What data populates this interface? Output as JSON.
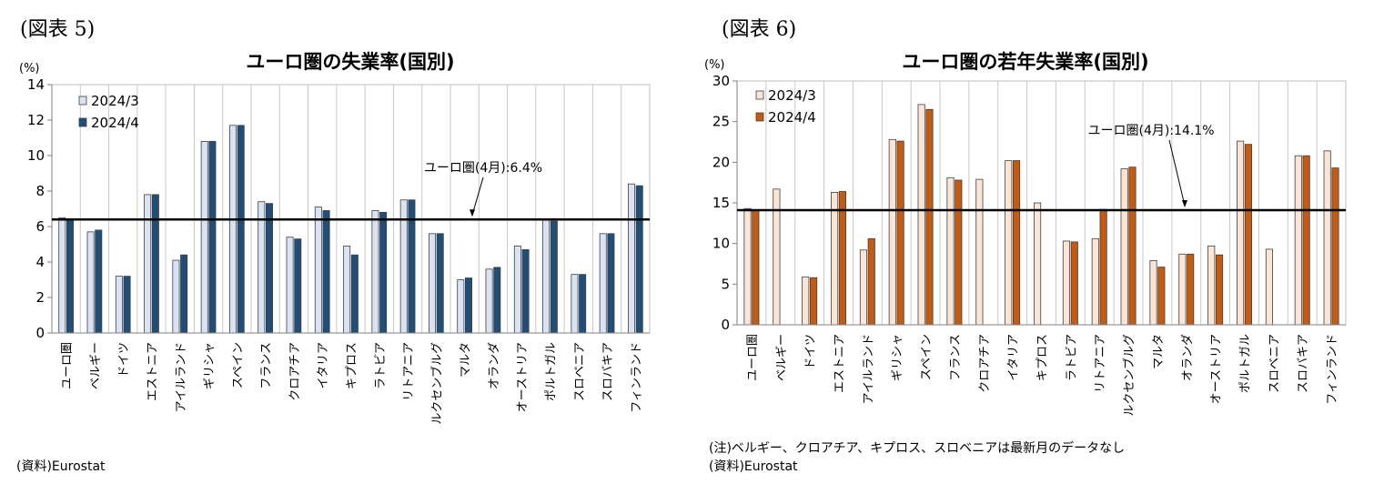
{
  "figures": [
    {
      "figure_label": "(図表 5)",
      "source": "(資料)Eurostat",
      "note": ""
    },
    {
      "figure_label": "(図表 6)",
      "source": "(資料)Eurostat",
      "note": "(注)ベルギー、クロアチア、キプロス、スロベニアは最新月のデータなし"
    }
  ],
  "chart_data": [
    {
      "type": "bar",
      "title": "ユーロ圏の失業率(国別)",
      "ylabel": "(%)",
      "xlabel": "",
      "ylim": [
        0,
        14
      ],
      "yticks": [
        0,
        2,
        4,
        6,
        8,
        10,
        12,
        14
      ],
      "grid": true,
      "legend_position": "top-left",
      "categories": [
        "ユーロ圏",
        "ベルギー",
        "ドイツ",
        "エストニア",
        "アイルランド",
        "ギリシャ",
        "スペイン",
        "フランス",
        "クロアチア",
        "イタリア",
        "キプロス",
        "ラトビア",
        "リトアニア",
        "ルクセンブルグ",
        "マルタ",
        "オランダ",
        "オーストリア",
        "ポルトガル",
        "スロベニア",
        "スロバキア",
        "フィンランド"
      ],
      "series": [
        {
          "name": "2024/3",
          "color": "#dae3f3",
          "values": [
            6.5,
            5.7,
            3.2,
            7.8,
            4.1,
            10.8,
            11.7,
            7.4,
            5.4,
            7.1,
            4.9,
            6.9,
            7.5,
            5.6,
            3.0,
            3.6,
            4.9,
            6.4,
            3.3,
            5.6,
            8.4
          ]
        },
        {
          "name": "2024/4",
          "color": "#1f4e79",
          "values": [
            6.4,
            5.8,
            3.2,
            7.8,
            4.4,
            10.8,
            11.7,
            7.3,
            5.3,
            6.9,
            4.4,
            6.8,
            7.5,
            5.6,
            3.1,
            3.7,
            4.7,
            6.3,
            3.3,
            5.6,
            8.3
          ]
        }
      ],
      "reference_line": {
        "value": 6.4,
        "label": "ユーロ圏(4月):6.4%"
      }
    },
    {
      "type": "bar",
      "title": "ユーロ圏の若年失業率(国別)",
      "ylabel": "(%)",
      "xlabel": "",
      "ylim": [
        0,
        30
      ],
      "yticks": [
        0,
        5,
        10,
        15,
        20,
        25,
        30
      ],
      "grid": true,
      "legend_position": "top-left",
      "categories": [
        "ユーロ圏",
        "ベルギー",
        "ドイツ",
        "エストニア",
        "アイルランド",
        "ギリシャ",
        "スペイン",
        "フランス",
        "クロアチア",
        "イタリア",
        "キプロス",
        "ラトビア",
        "リトアニア",
        "ルクセンブルグ",
        "マルタ",
        "オランダ",
        "オーストリア",
        "ポルトガル",
        "スロベニア",
        "スロバキア",
        "フィンランド"
      ],
      "series": [
        {
          "name": "2024/3",
          "color": "#fbe5d6",
          "values": [
            14.3,
            16.7,
            5.9,
            16.3,
            9.2,
            22.8,
            27.1,
            18.1,
            17.9,
            20.2,
            15.0,
            10.3,
            10.6,
            19.2,
            7.9,
            8.7,
            9.7,
            22.6,
            9.3,
            20.8,
            21.4
          ]
        },
        {
          "name": "2024/4",
          "color": "#c55a11",
          "values": [
            14.1,
            null,
            5.8,
            16.4,
            10.6,
            22.6,
            26.5,
            17.8,
            null,
            20.2,
            null,
            10.2,
            14.2,
            19.4,
            7.1,
            8.7,
            8.6,
            22.2,
            null,
            20.8,
            19.3
          ]
        }
      ],
      "reference_line": {
        "value": 14.1,
        "label": "ユーロ圏(4月):14.1%"
      }
    }
  ]
}
